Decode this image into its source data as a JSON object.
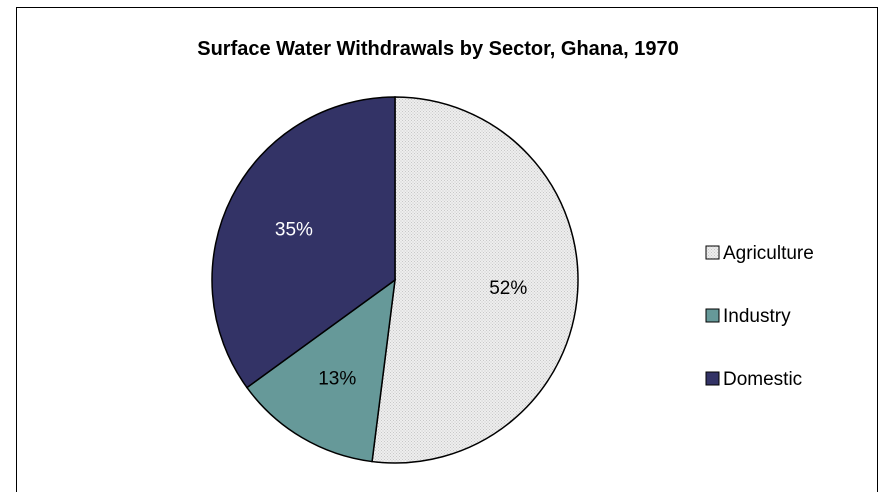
{
  "chart_data": {
    "type": "pie",
    "title": "Surface Water Withdrawals by Sector, Ghana, 1970",
    "categories": [
      "Agriculture",
      "Industry",
      "Domestic"
    ],
    "values": [
      52,
      13,
      35
    ],
    "labels": [
      "52%",
      "13%",
      "35%"
    ],
    "colors": [
      "#e6e6e6",
      "#669999",
      "#333366"
    ],
    "legend": "right",
    "start_angle": "12 o'clock, clockwise"
  }
}
